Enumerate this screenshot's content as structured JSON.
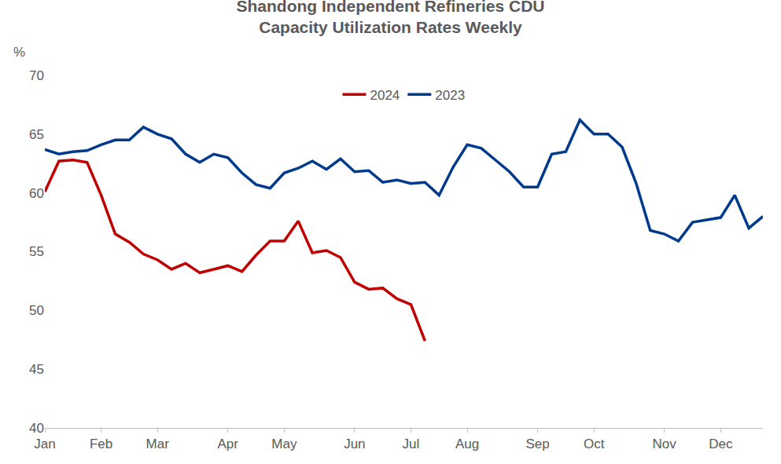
{
  "chart_data": {
    "type": "line",
    "title": "Shandong Independent Refineries CDU Capacity Utilization Rates Weekly",
    "y_label": "%",
    "categories": [
      "Jan",
      null,
      null,
      null,
      "Feb",
      null,
      null,
      null,
      "Mar",
      null,
      null,
      null,
      null,
      "Apr",
      null,
      null,
      null,
      "May",
      null,
      null,
      null,
      null,
      "Jun",
      null,
      null,
      null,
      "Jul",
      null,
      null,
      null,
      "Aug",
      null,
      null,
      null,
      null,
      "Sep",
      null,
      null,
      null,
      "Oct",
      null,
      null,
      null,
      null,
      "Nov",
      null,
      null,
      null,
      "Dec",
      null,
      null,
      null
    ],
    "series": [
      {
        "name": "2024",
        "color": "#c00000",
        "values": [
          60.1,
          62.7,
          62.8,
          62.6,
          59.8,
          56.5,
          55.8,
          54.8,
          54.3,
          53.5,
          54.0,
          53.2,
          53.5,
          53.8,
          53.3,
          54.7,
          55.9,
          55.9,
          57.6,
          54.9,
          55.1,
          54.5,
          52.4,
          51.8,
          51.9,
          51.0,
          50.5,
          47.4,
          null,
          null,
          null,
          null,
          null,
          null,
          null,
          null,
          null,
          null,
          null,
          null,
          null,
          null,
          null,
          null,
          null,
          null,
          null,
          null,
          null,
          null,
          null,
          null
        ]
      },
      {
        "name": "2023",
        "color": "#003a8c",
        "values": [
          63.7,
          63.3,
          63.5,
          63.6,
          64.1,
          64.5,
          64.5,
          65.6,
          65.0,
          64.6,
          63.3,
          62.6,
          63.3,
          63.0,
          61.7,
          60.7,
          60.4,
          61.7,
          62.1,
          62.7,
          62.0,
          62.9,
          61.8,
          61.9,
          60.9,
          61.1,
          60.8,
          60.9,
          59.8,
          62.2,
          64.1,
          63.8,
          62.8,
          61.8,
          60.5,
          60.5,
          63.3,
          63.5,
          66.2,
          65.0,
          65.0,
          63.9,
          60.8,
          56.8,
          56.5,
          55.9,
          57.5,
          57.7,
          57.9,
          59.8,
          57.0,
          58.0
        ]
      }
    ],
    "ylim": [
      40,
      70
    ],
    "yticks": [
      40,
      45,
      50,
      55,
      60,
      65,
      70
    ],
    "grid": false,
    "legend": "top"
  }
}
